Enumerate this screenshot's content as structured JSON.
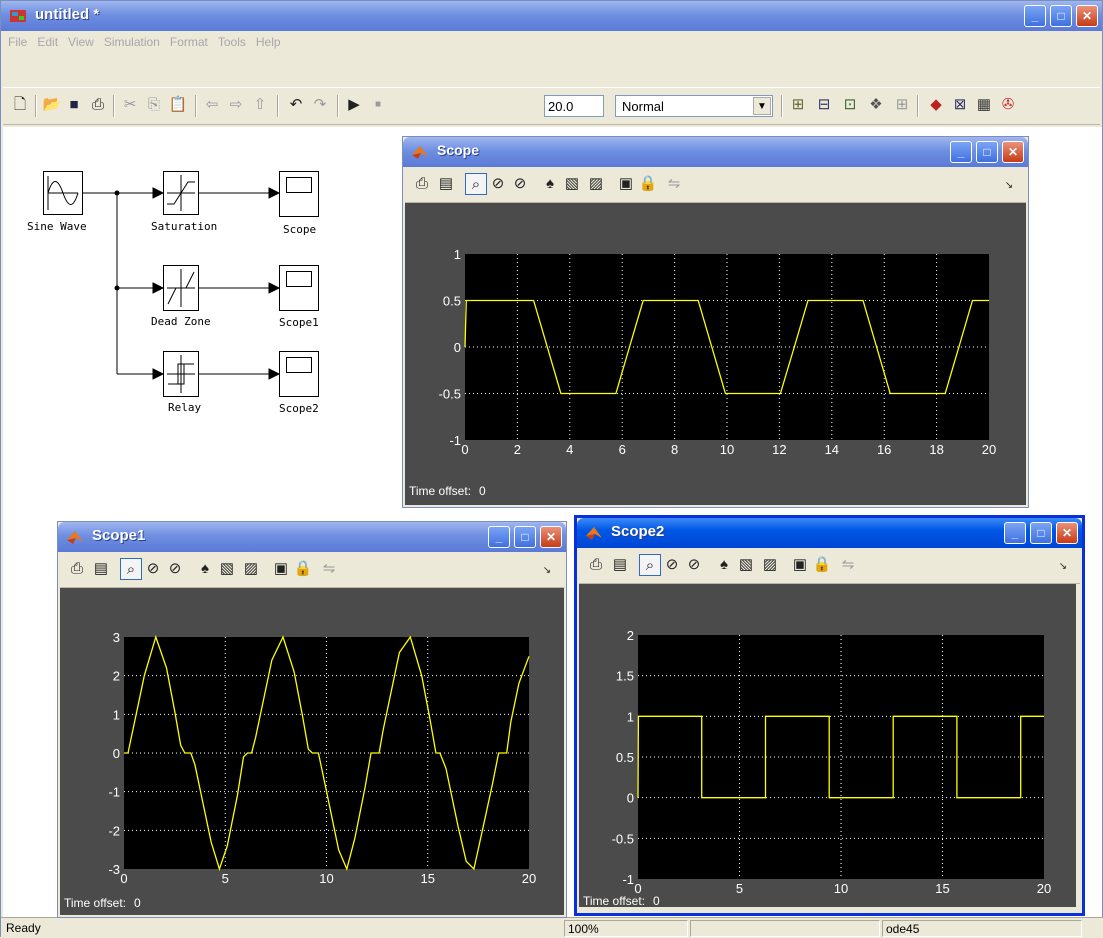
{
  "main_window": {
    "title": "untitled *",
    "menu": [
      "File",
      "Edit",
      "View",
      "Simulation",
      "Format",
      "Tools",
      "Help"
    ],
    "stop_time": "20.0",
    "sim_mode": "Normal",
    "toolbar_icons": [
      "new-icon",
      "open-icon",
      "save-icon",
      "print-icon",
      "cut-icon",
      "copy-icon",
      "paste-icon",
      "back-icon",
      "forward-icon",
      "up-icon",
      "undo-icon",
      "redo-icon",
      "play-icon",
      "stop-icon"
    ],
    "right_icons": [
      "model-explorer-icon",
      "library-icon",
      "debug-icon",
      "build-icon",
      "grid-icon",
      "simulink-library-icon",
      "browser-icon",
      "model-advisor-icon",
      "help-icon"
    ]
  },
  "diagram": {
    "blocks": {
      "sine": "Sine Wave",
      "saturation": "Saturation",
      "deadzone": "Dead Zone",
      "relay": "Relay",
      "scope": "Scope",
      "scope1": "Scope1",
      "scope2": "Scope2"
    }
  },
  "scopes": [
    {
      "title": "Scope",
      "time_offset_label": "Time offset:",
      "time_offset_value": "0",
      "chart_data": {
        "type": "line",
        "x_ticks": [
          "0",
          "2",
          "4",
          "6",
          "8",
          "10",
          "12",
          "14",
          "16",
          "18",
          "20"
        ],
        "y_ticks": [
          "1",
          "0.5",
          "0",
          "-0.5",
          "-1"
        ],
        "xlim": [
          0,
          20
        ],
        "ylim": [
          -1,
          1
        ],
        "grid": true,
        "series_color": "#ffff00",
        "x": [
          0,
          0.05,
          0.52,
          2.62,
          3.14,
          3.66,
          5.76,
          6.28,
          6.8,
          8.9,
          9.42,
          9.94,
          12.04,
          12.57,
          13.09,
          15.19,
          15.71,
          16.23,
          18.33,
          18.85,
          19.37,
          20
        ],
        "y": [
          0,
          0.5,
          0.5,
          0.5,
          0,
          -0.5,
          -0.5,
          0,
          0.5,
          0.5,
          0,
          -0.5,
          -0.5,
          0,
          0.5,
          0.5,
          0,
          -0.5,
          -0.5,
          0,
          0.5,
          0.5
        ]
      }
    },
    {
      "title": "Scope1",
      "time_offset_label": "Time offset:",
      "time_offset_value": "0",
      "chart_data": {
        "type": "line",
        "x_ticks": [
          "0",
          "5",
          "10",
          "15",
          "20"
        ],
        "y_ticks": [
          "3",
          "2",
          "1",
          "0",
          "-1",
          "-2",
          "-3"
        ],
        "xlim": [
          0,
          20
        ],
        "ylim": [
          -3,
          3
        ],
        "grid": true,
        "series_color": "#ffff00",
        "x": [
          0,
          0.2,
          0.6,
          1.0,
          1.57,
          2.1,
          2.5,
          2.8,
          3.0,
          3.3,
          3.5,
          3.9,
          4.3,
          4.71,
          5.1,
          5.6,
          5.9,
          6.1,
          6.3,
          6.5,
          6.9,
          7.3,
          7.85,
          8.4,
          8.8,
          9.1,
          9.3,
          9.6,
          9.8,
          10.2,
          10.6,
          11.0,
          11.4,
          11.9,
          12.2,
          12.4,
          12.6,
          12.8,
          13.2,
          13.6,
          14.14,
          14.7,
          15.1,
          15.4,
          15.6,
          15.9,
          16.1,
          16.5,
          16.9,
          17.28,
          17.7,
          18.2,
          18.5,
          18.7,
          18.9,
          19.1,
          19.5,
          20
        ],
        "y": [
          0,
          0,
          1.0,
          2.0,
          3.0,
          2.2,
          1.1,
          0.2,
          0,
          0,
          -0.3,
          -1.3,
          -2.3,
          -3.0,
          -2.4,
          -1.1,
          -0.1,
          0,
          0,
          0.4,
          1.4,
          2.4,
          3.0,
          2.1,
          1.0,
          0.1,
          0,
          0,
          -0.5,
          -1.5,
          -2.5,
          -3.0,
          -2.2,
          -0.9,
          0,
          0,
          0,
          0.6,
          1.6,
          2.6,
          3.0,
          2.0,
          0.9,
          0,
          0,
          -0.4,
          -0.9,
          -1.9,
          -2.8,
          -3.0,
          -2.0,
          -0.8,
          0,
          0,
          0,
          0.8,
          1.8,
          2.5
        ]
      }
    },
    {
      "title": "Scope2",
      "time_offset_label": "Time offset:",
      "time_offset_value": "0",
      "chart_data": {
        "type": "line",
        "x_ticks": [
          "0",
          "5",
          "10",
          "15",
          "20"
        ],
        "y_ticks": [
          "2",
          "1.5",
          "1",
          "0.5",
          "0",
          "-0.5",
          "-1"
        ],
        "xlim": [
          0,
          20
        ],
        "ylim": [
          -1,
          2
        ],
        "grid": true,
        "series_color": "#ffff00",
        "x": [
          0,
          0.02,
          3.14,
          3.14,
          6.28,
          6.28,
          9.42,
          9.42,
          12.57,
          12.57,
          15.71,
          15.71,
          18.85,
          18.85,
          20
        ],
        "y": [
          0,
          1,
          1,
          0,
          0,
          1,
          1,
          0,
          0,
          1,
          1,
          0,
          0,
          1,
          1
        ]
      }
    }
  ],
  "scope_toolbar_icons": [
    "print-icon",
    "params-icon",
    "zoom-icon",
    "zoom-x-icon",
    "zoom-y-icon",
    "autoscale-icon",
    "save-axes-icon",
    "restore-axes-icon",
    "float-icon",
    "lock-icon",
    "signal-select-icon"
  ],
  "status": {
    "ready": "Ready",
    "zoom": "100%",
    "solver": "ode45"
  }
}
